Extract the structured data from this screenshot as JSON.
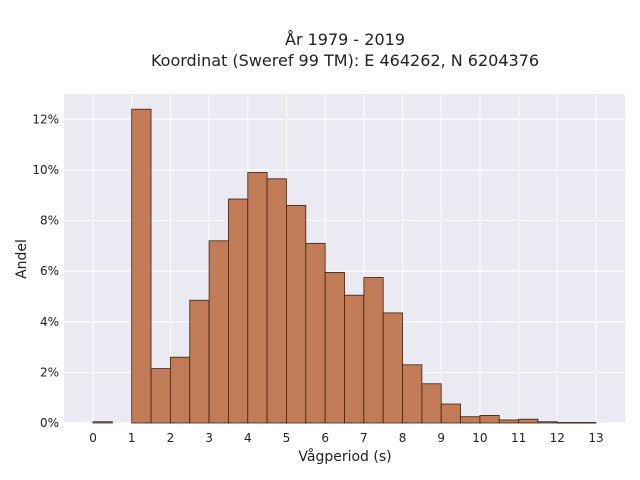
{
  "chart_data": {
    "type": "bar",
    "title_lines": [
      "År 1979 - 2019",
      "Koordinat (Sweref 99 TM): E 464262, N 6204376"
    ],
    "xlabel": "Vågperiod (s)",
    "ylabel": "Andel",
    "xlim": [
      -0.75,
      13.75
    ],
    "ylim": [
      0,
      13
    ],
    "x_ticks": [
      0,
      1,
      2,
      3,
      4,
      5,
      6,
      7,
      8,
      9,
      10,
      11,
      12,
      13
    ],
    "y_ticks": [
      0,
      2,
      4,
      6,
      8,
      10,
      12
    ],
    "y_tick_labels": [
      "0%",
      "2%",
      "4%",
      "6%",
      "8%",
      "10%",
      "12%"
    ],
    "bin_width": 0.5,
    "bins": [
      {
        "start": 0.0,
        "value": 0.05
      },
      {
        "start": 0.5,
        "value": 0.0
      },
      {
        "start": 1.0,
        "value": 12.4
      },
      {
        "start": 1.5,
        "value": 2.15
      },
      {
        "start": 2.0,
        "value": 2.6
      },
      {
        "start": 2.5,
        "value": 4.85
      },
      {
        "start": 3.0,
        "value": 7.2
      },
      {
        "start": 3.5,
        "value": 8.85
      },
      {
        "start": 4.0,
        "value": 9.9
      },
      {
        "start": 4.5,
        "value": 9.65
      },
      {
        "start": 5.0,
        "value": 8.6
      },
      {
        "start": 5.5,
        "value": 7.1
      },
      {
        "start": 6.0,
        "value": 5.95
      },
      {
        "start": 6.5,
        "value": 5.05
      },
      {
        "start": 7.0,
        "value": 5.75
      },
      {
        "start": 7.5,
        "value": 4.35
      },
      {
        "start": 8.0,
        "value": 2.3
      },
      {
        "start": 8.5,
        "value": 1.55
      },
      {
        "start": 9.0,
        "value": 0.75
      },
      {
        "start": 9.5,
        "value": 0.25
      },
      {
        "start": 10.0,
        "value": 0.3
      },
      {
        "start": 10.5,
        "value": 0.12
      },
      {
        "start": 11.0,
        "value": 0.15
      },
      {
        "start": 11.5,
        "value": 0.05
      },
      {
        "start": 12.0,
        "value": 0.02
      },
      {
        "start": 12.5,
        "value": 0.02
      }
    ],
    "grid": true,
    "colors": {
      "bar_fill": "#c17b56",
      "bar_edge": "#3a2215",
      "plot_background": "#eaeaf2",
      "grid": "#ffffff"
    }
  }
}
